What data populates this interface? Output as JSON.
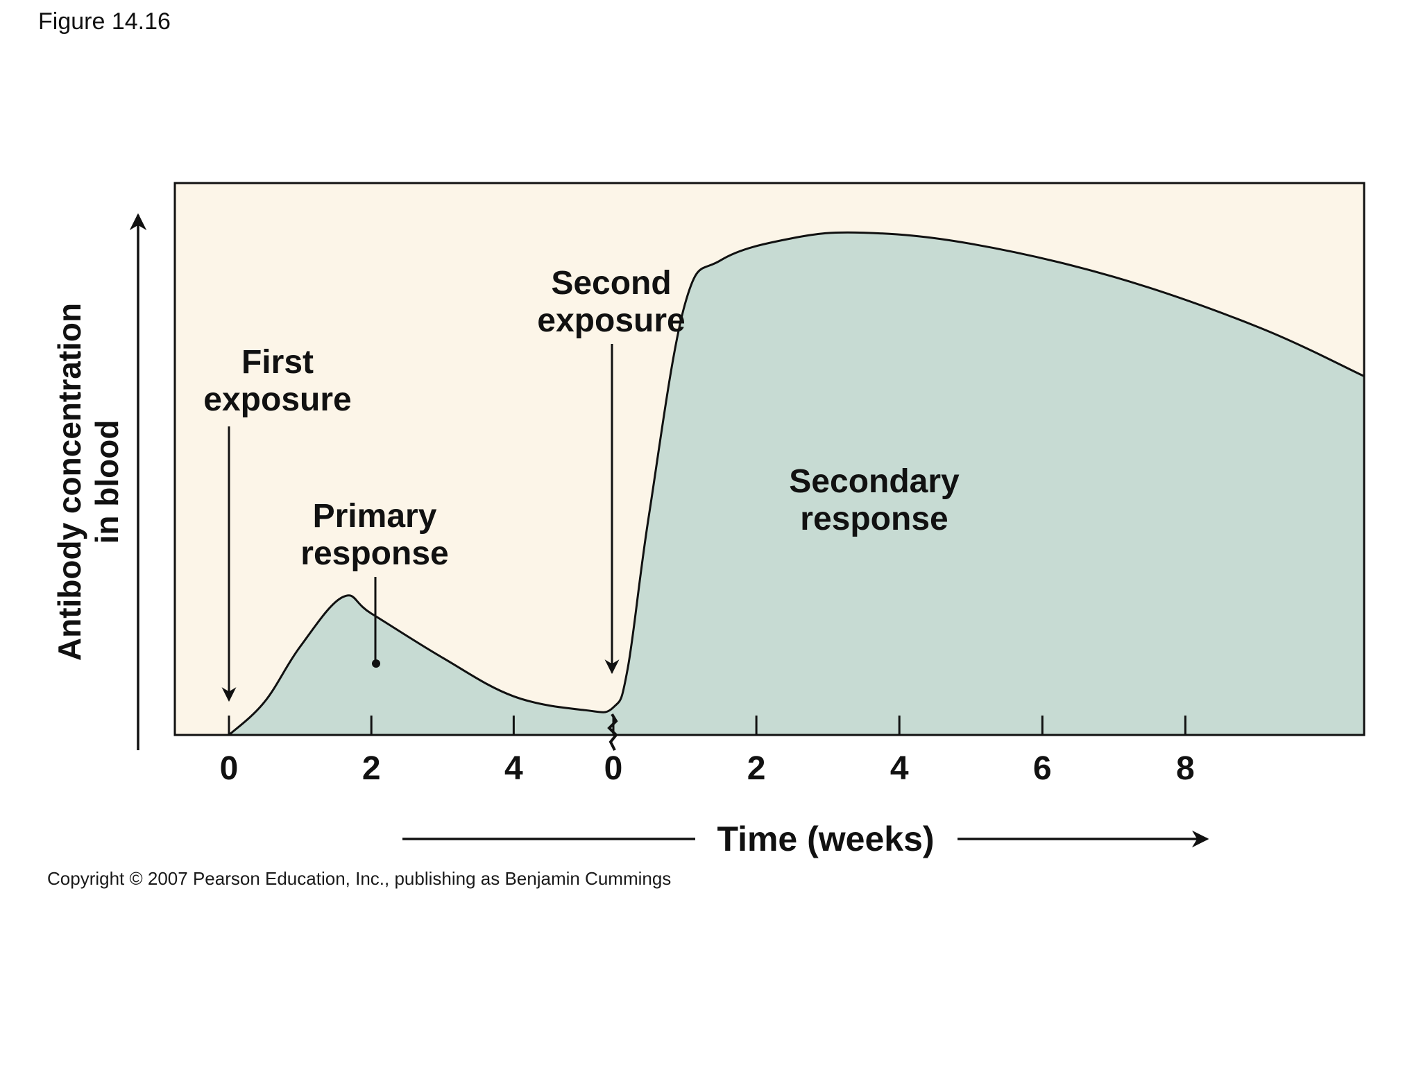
{
  "figure_label": "Figure 14.16",
  "copyright": "Copyright © 2007 Pearson Education, Inc., publishing as Benjamin Cummings",
  "colors": {
    "plot_background": "#fcf5e8",
    "fill": "#c7dbd3",
    "line": "#111111"
  },
  "chart_data": {
    "type": "area",
    "title": "",
    "xlabel": "Time (weeks)",
    "ylabel": [
      "Antibody concentration",
      "in blood"
    ],
    "y_ticks": "none",
    "axis_break": "between week 4 of the first segment and week 0 of the second segment",
    "segments": [
      {
        "name": "Primary response",
        "ticks": [
          "0",
          "2",
          "4"
        ],
        "x_range": [
          0,
          5.4
        ],
        "points": [
          {
            "x": 0,
            "y": 0
          },
          {
            "x": 0.5,
            "y": 6
          },
          {
            "x": 1.0,
            "y": 16
          },
          {
            "x": 1.6,
            "y": 25
          },
          {
            "x": 2.0,
            "y": 22
          },
          {
            "x": 3.0,
            "y": 14
          },
          {
            "x": 4.0,
            "y": 7
          },
          {
            "x": 5.0,
            "y": 4.5
          },
          {
            "x": 5.4,
            "y": 5
          }
        ]
      },
      {
        "name": "Secondary response",
        "ticks": [
          "0",
          "2",
          "4",
          "6",
          "8"
        ],
        "x_range": [
          0,
          10.5
        ],
        "points": [
          {
            "x": 0,
            "y": 5
          },
          {
            "x": 0.2,
            "y": 12
          },
          {
            "x": 0.5,
            "y": 40
          },
          {
            "x": 1.0,
            "y": 78
          },
          {
            "x": 1.5,
            "y": 86
          },
          {
            "x": 2.5,
            "y": 90
          },
          {
            "x": 3.5,
            "y": 91
          },
          {
            "x": 5.0,
            "y": 89
          },
          {
            "x": 7.0,
            "y": 83
          },
          {
            "x": 9.0,
            "y": 74
          },
          {
            "x": 10.5,
            "y": 65
          }
        ]
      }
    ],
    "y_range": [
      0,
      100
    ],
    "annotations": [
      {
        "id": "first-exposure",
        "text": [
          "First",
          "exposure"
        ],
        "segment": 0,
        "x": 0
      },
      {
        "id": "second-exposure",
        "text": [
          "Second",
          "exposure"
        ],
        "segment": 1,
        "x": 0
      },
      {
        "id": "primary-response",
        "text": [
          "Primary",
          "response"
        ],
        "segment": 0,
        "x": 2
      },
      {
        "id": "secondary-response",
        "text": [
          "Secondary",
          "response"
        ],
        "segment": 1,
        "x": 3.5
      }
    ]
  }
}
